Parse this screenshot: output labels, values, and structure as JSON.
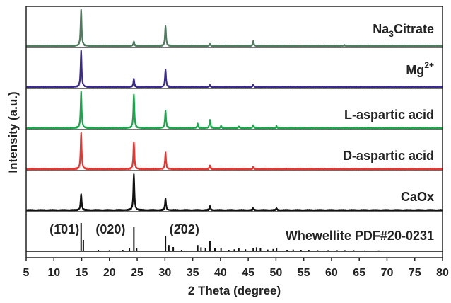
{
  "chart_data": {
    "type": "line",
    "title": "",
    "xlabel": "2 Theta (degree)",
    "ylabel": "Intensity (a.u.)",
    "xlim": [
      5,
      80
    ],
    "xticks": [
      "5",
      "10",
      "15",
      "20",
      "25",
      "30",
      "35",
      "40",
      "45",
      "50",
      "55",
      "60",
      "65",
      "70",
      "75",
      "80"
    ],
    "yticks": "none",
    "grid": false,
    "legend": "none",
    "series": [
      {
        "name": "Na3Citrate",
        "label_main": "Na",
        "label_sub": "3",
        "label_tail": "Citrate",
        "color": "#4e7a5e",
        "peaks": [
          [
            14.9,
            1.0
          ],
          [
            24.4,
            0.12
          ],
          [
            30.1,
            0.55
          ],
          [
            38.1,
            0.06
          ],
          [
            45.9,
            0.14
          ],
          [
            62.3,
            0.03
          ]
        ]
      },
      {
        "name": "Mg2+",
        "label_main": "Mg",
        "label_sup": "2+",
        "color": "#3b2a8e",
        "peaks": [
          [
            14.9,
            1.0
          ],
          [
            24.4,
            0.22
          ],
          [
            30.1,
            0.48
          ],
          [
            38.1,
            0.05
          ],
          [
            45.9,
            0.07
          ]
        ]
      },
      {
        "name": "L-aspartic acid",
        "color": "#1aa64a",
        "peaks": [
          [
            14.9,
            1.0
          ],
          [
            24.4,
            0.92
          ],
          [
            30.1,
            0.48
          ],
          [
            35.9,
            0.12
          ],
          [
            38.1,
            0.22
          ],
          [
            40.1,
            0.06
          ],
          [
            43.3,
            0.05
          ],
          [
            45.9,
            0.08
          ],
          [
            50.1,
            0.05
          ]
        ]
      },
      {
        "name": "D-aspartic acid",
        "color": "#e8352f",
        "peaks": [
          [
            14.9,
            1.0
          ],
          [
            24.4,
            0.75
          ],
          [
            30.1,
            0.45
          ],
          [
            38.1,
            0.1
          ],
          [
            45.9,
            0.06
          ]
        ]
      },
      {
        "name": "CaOx",
        "color": "#111111",
        "peaks": [
          [
            14.9,
            0.45
          ],
          [
            24.4,
            1.0
          ],
          [
            30.1,
            0.32
          ],
          [
            38.1,
            0.12
          ],
          [
            45.9,
            0.06
          ],
          [
            50.1,
            0.05
          ]
        ]
      }
    ],
    "reference": {
      "name": "Whewellite PDF#20-0231",
      "color": "#111111",
      "lines": [
        [
          14.9,
          1.0
        ],
        [
          15.3,
          0.4
        ],
        [
          18.0,
          0.05
        ],
        [
          20.0,
          0.04
        ],
        [
          22.4,
          0.05
        ],
        [
          23.6,
          0.12
        ],
        [
          24.4,
          0.85
        ],
        [
          24.9,
          0.1
        ],
        [
          30.1,
          0.55
        ],
        [
          30.7,
          0.22
        ],
        [
          31.5,
          0.15
        ],
        [
          33.0,
          0.05
        ],
        [
          35.9,
          0.22
        ],
        [
          36.5,
          0.14
        ],
        [
          37.3,
          0.1
        ],
        [
          38.1,
          0.35
        ],
        [
          39.0,
          0.1
        ],
        [
          40.1,
          0.12
        ],
        [
          41.5,
          0.05
        ],
        [
          42.5,
          0.07
        ],
        [
          43.3,
          0.12
        ],
        [
          44.5,
          0.07
        ],
        [
          45.9,
          0.12
        ],
        [
          46.5,
          0.14
        ],
        [
          47.2,
          0.1
        ],
        [
          48.5,
          0.06
        ],
        [
          49.5,
          0.08
        ],
        [
          50.1,
          0.12
        ],
        [
          52.0,
          0.05
        ],
        [
          53.1,
          0.06
        ],
        [
          54.5,
          0.05
        ],
        [
          55.9,
          0.05
        ],
        [
          57.5,
          0.04
        ],
        [
          59.4,
          0.04
        ],
        [
          61.0,
          0.04
        ],
        [
          62.4,
          0.04
        ],
        [
          64.0,
          0.04
        ],
        [
          66.0,
          0.03
        ],
        [
          68.5,
          0.03
        ]
      ],
      "annotations": [
        {
          "x": 11.9,
          "text": "(1̄01)"
        },
        {
          "x": 20.2,
          "text": "(020)"
        },
        {
          "x": 33.5,
          "text": "(2̄02)"
        }
      ]
    }
  }
}
